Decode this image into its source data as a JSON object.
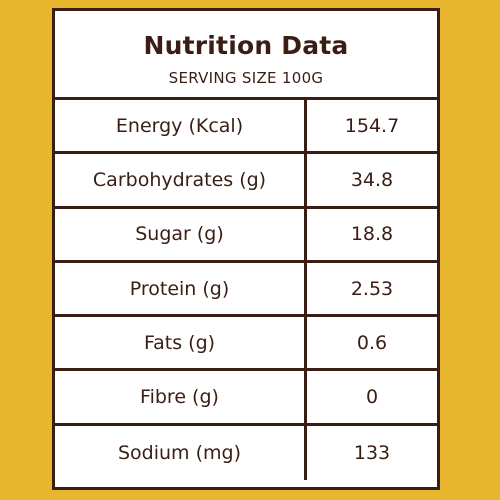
{
  "table": {
    "title": "Nutrition Data",
    "subtitle": "SERVING SIZE 100G",
    "rows": [
      {
        "label": "Energy (Kcal)",
        "value": "154.7"
      },
      {
        "label": "Carbohydrates (g)",
        "value": "34.8"
      },
      {
        "label": "Sugar (g)",
        "value": "18.8"
      },
      {
        "label": "Protein (g)",
        "value": "2.53"
      },
      {
        "label": "Fats (g)",
        "value": "0.6"
      },
      {
        "label": "Fibre (g)",
        "value": "0"
      },
      {
        "label": "Sodium (mg)",
        "value": "133"
      }
    ]
  },
  "colors": {
    "background": "#e8b52e",
    "ink": "#3a1e14",
    "panel": "#ffffff"
  }
}
